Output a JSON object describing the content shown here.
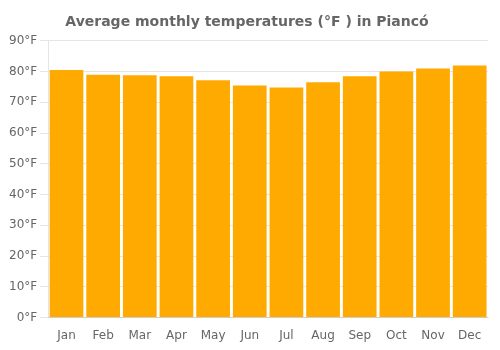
{
  "chart_data": {
    "type": "bar",
    "title": "Average monthly temperatures (°F ) in Piancó",
    "categories": [
      "Jan",
      "Feb",
      "Mar",
      "Apr",
      "May",
      "Jun",
      "Jul",
      "Aug",
      "Sep",
      "Oct",
      "Nov",
      "Dec"
    ],
    "values": [
      80.5,
      79.0,
      78.8,
      78.5,
      77.2,
      75.5,
      74.8,
      76.5,
      78.5,
      80.0,
      81.0,
      82.0
    ],
    "color": "#FFAA00",
    "ylim": [
      0,
      90
    ],
    "yticks": [
      {
        "value": 0,
        "label": "0°F"
      },
      {
        "value": 10,
        "label": "10°F"
      },
      {
        "value": 20,
        "label": "20°F"
      },
      {
        "value": 30,
        "label": "30°F"
      },
      {
        "value": 40,
        "label": "40°F"
      },
      {
        "value": 50,
        "label": "50°F"
      },
      {
        "value": 60,
        "label": "60°F"
      },
      {
        "value": 70,
        "label": "70°F"
      },
      {
        "value": 80,
        "label": "80°F"
      },
      {
        "value": 90,
        "label": "90°F"
      }
    ],
    "grid": true
  }
}
